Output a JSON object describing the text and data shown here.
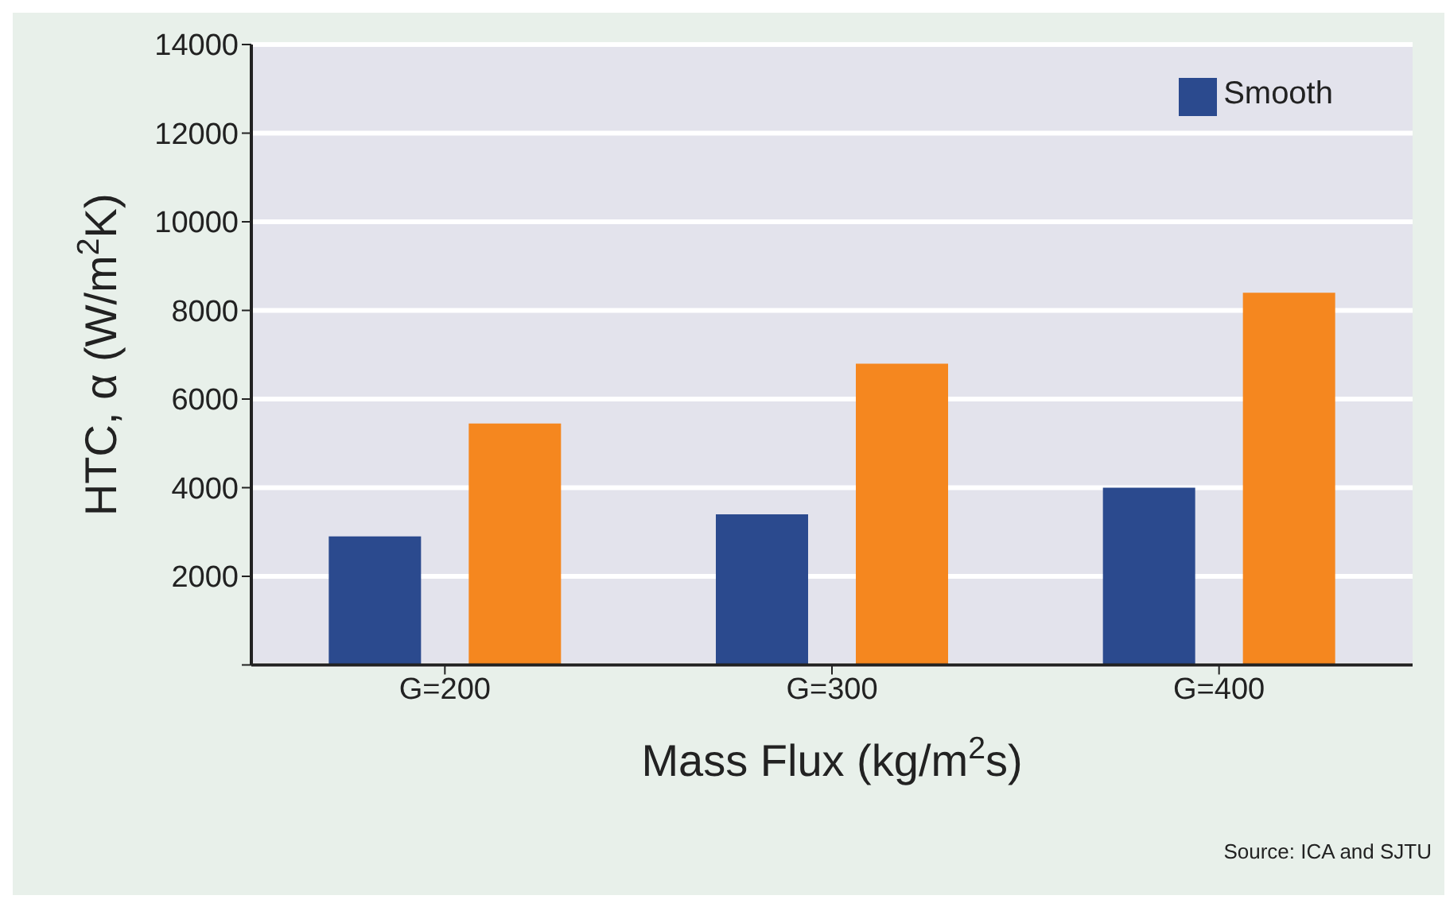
{
  "chart_data": {
    "type": "bar",
    "xlabel": "Mass Flux (kg/m$^{2}$s)",
    "ylabel": "HTC, α (W/m$^{2}$K)",
    "categories": [
      "G=200",
      "G=300",
      "G=400"
    ],
    "series": [
      {
        "name": "Smooth",
        "color": "#2b4a8e",
        "values": [
          2900,
          3400,
          4000
        ]
      },
      {
        "color": "#f5871f",
        "values": [
          5450,
          6800,
          8400
        ]
      }
    ],
    "ylim": [
      0,
      14000
    ],
    "yticks": [
      {
        "value": 0,
        "label": null
      },
      2000,
      4000,
      6000,
      8000,
      10000,
      12000,
      14000
    ],
    "grid": "y",
    "legend": "top right",
    "annotations": [
      "Source: ICA and SJTU"
    ]
  }
}
